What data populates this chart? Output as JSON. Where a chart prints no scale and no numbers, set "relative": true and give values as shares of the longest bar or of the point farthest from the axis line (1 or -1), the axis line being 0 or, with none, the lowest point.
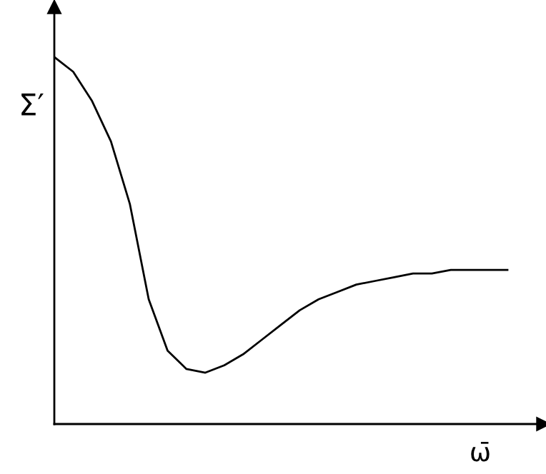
{
  "chart_data": {
    "type": "line",
    "relative": true,
    "xlabel": "ω̄",
    "ylabel": "Σ′",
    "categories": [
      null,
      null,
      null,
      null,
      null,
      null,
      null,
      null,
      null,
      null,
      null,
      null,
      null,
      null,
      null,
      null,
      null,
      null,
      null,
      null,
      null,
      null,
      null,
      null,
      null
    ],
    "series": [
      {
        "color": "#000000",
        "values": [
          1.0,
          0.96,
          0.88,
          0.77,
          0.6,
          0.34,
          0.2,
          0.15,
          0.14,
          0.16,
          0.19,
          0.23,
          0.27,
          0.31,
          0.34,
          0.36,
          0.38,
          0.39,
          0.4,
          0.41,
          0.41,
          0.42,
          0.42,
          0.42,
          0.42
        ]
      }
    ],
    "marker": "none",
    "line_style": "solid"
  }
}
